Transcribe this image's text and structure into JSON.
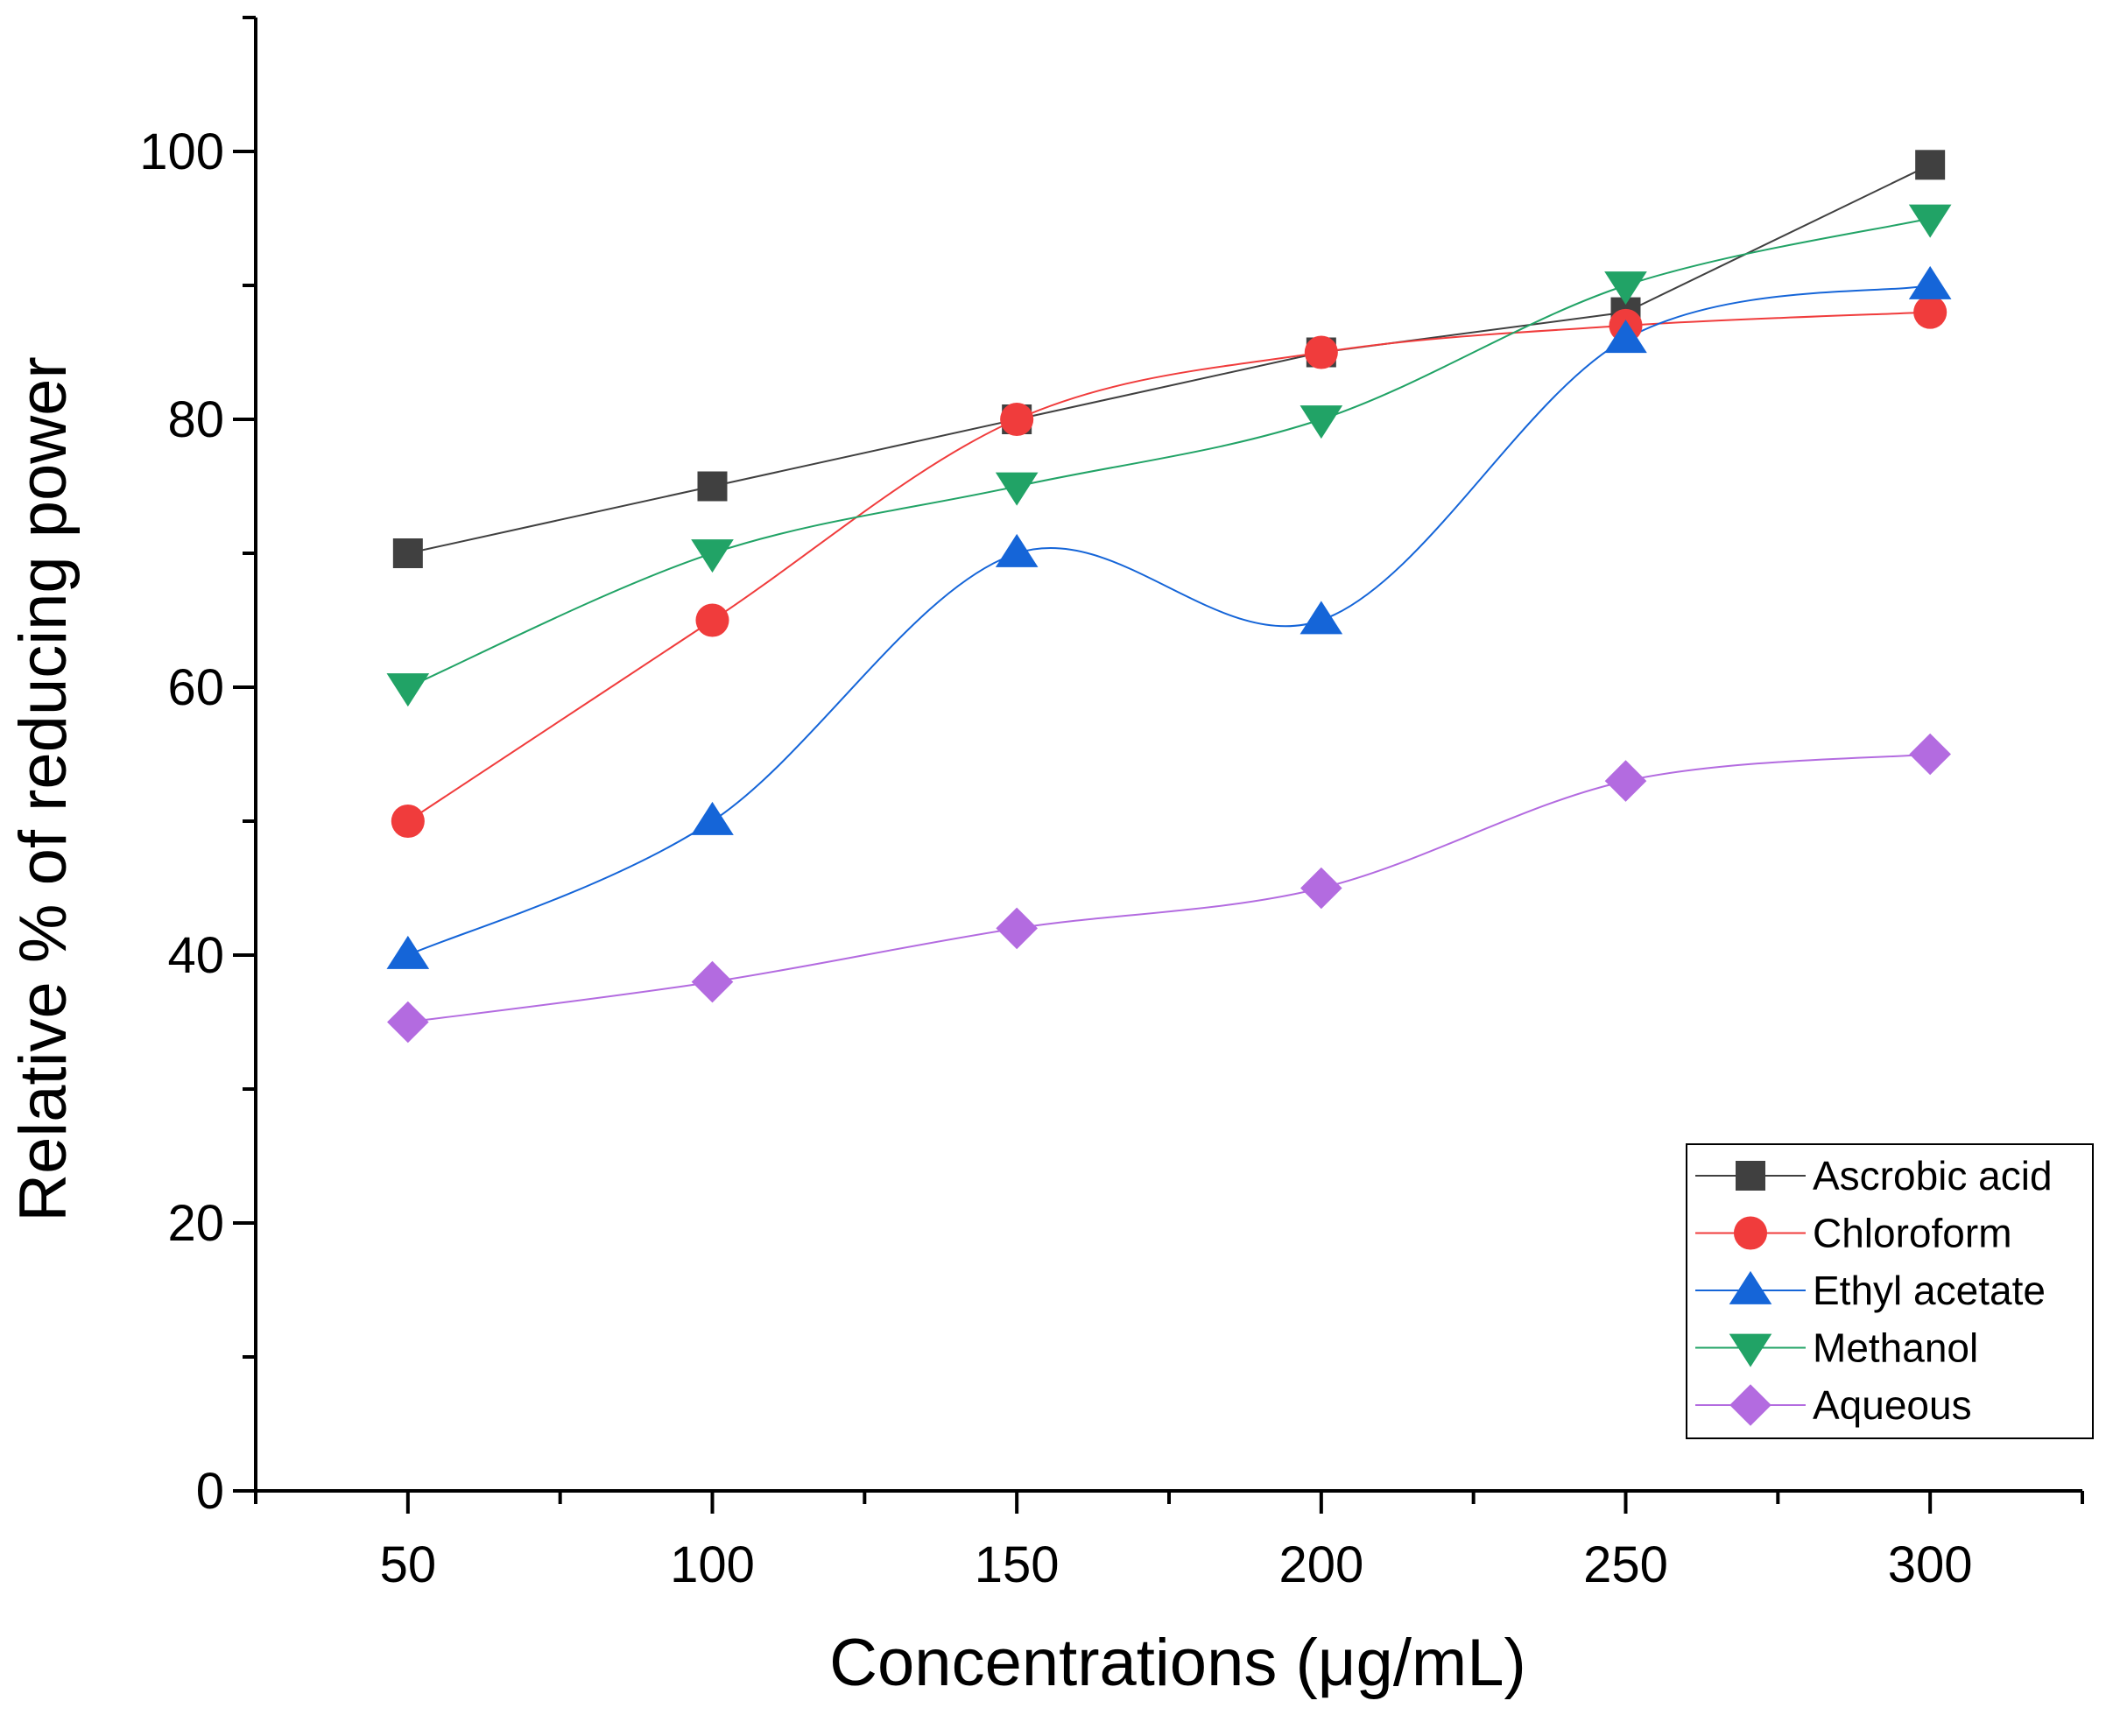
{
  "chart_data": {
    "type": "line",
    "title": "",
    "xlabel": "Concentrations (μg/mL)",
    "ylabel": "Relative % of reducing power",
    "x": [
      50,
      100,
      150,
      200,
      250,
      300
    ],
    "xlim": [
      25,
      325
    ],
    "ylim": [
      0,
      110
    ],
    "xticks": [
      50,
      100,
      150,
      200,
      250,
      300
    ],
    "yticks": [
      0,
      20,
      40,
      60,
      80,
      100
    ],
    "grid": false,
    "legend_position": "bottom-right",
    "series": [
      {
        "name": "Ascrobic acid",
        "values": [
          70,
          75,
          80,
          85,
          88,
          99
        ],
        "color": "#404040",
        "marker": "square",
        "smooth": false
      },
      {
        "name": "Chloroform",
        "values": [
          50,
          65,
          80,
          85,
          87,
          88
        ],
        "color": "#f03c3c",
        "marker": "circle",
        "smooth": true
      },
      {
        "name": "Ethyl acetate",
        "values": [
          40,
          50,
          70,
          65,
          86,
          90
        ],
        "color": "#1565d8",
        "marker": "triangle-up",
        "smooth": true
      },
      {
        "name": "Methanol",
        "values": [
          60,
          70,
          75,
          80,
          90,
          95
        ],
        "color": "#21a366",
        "marker": "triangle-down",
        "smooth": true
      },
      {
        "name": "Aqueous",
        "values": [
          35,
          38,
          42,
          45,
          53,
          55
        ],
        "color": "#b36be0",
        "marker": "diamond",
        "smooth": true
      }
    ]
  }
}
